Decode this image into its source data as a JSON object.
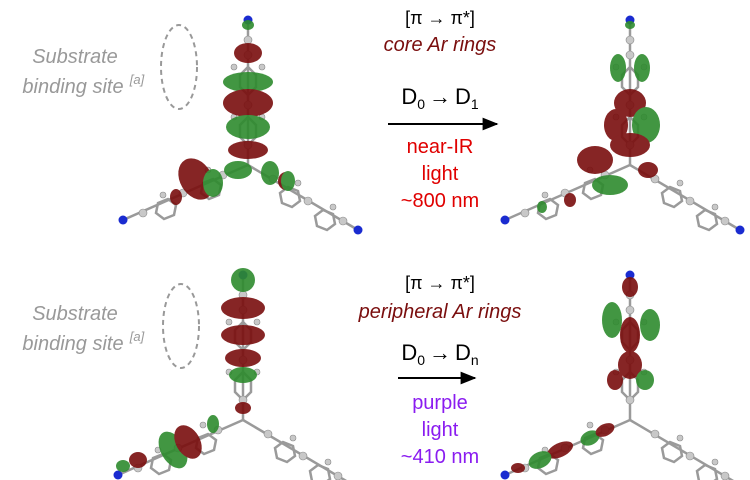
{
  "panels": [
    {
      "substrate": "Substrate",
      "binding": "binding site",
      "note": "[a]",
      "transition": "[π → π*]",
      "description": "core Ar rings",
      "state": {
        "from": "D",
        "from_sub": "0",
        "arrow": "→",
        "to": "D",
        "to_sub": "1"
      },
      "light": [
        "near-IR",
        "light",
        "~800 nm"
      ]
    },
    {
      "substrate": "Substrate",
      "binding": "binding site",
      "note": "[a]",
      "transition": "[π → π*]",
      "description": "peripheral Ar rings",
      "state": {
        "from": "D",
        "from_sub": "0",
        "arrow": "→",
        "to": "D",
        "to_sub": "n"
      },
      "light": [
        "purple",
        "light",
        "~410 nm"
      ]
    }
  ]
}
